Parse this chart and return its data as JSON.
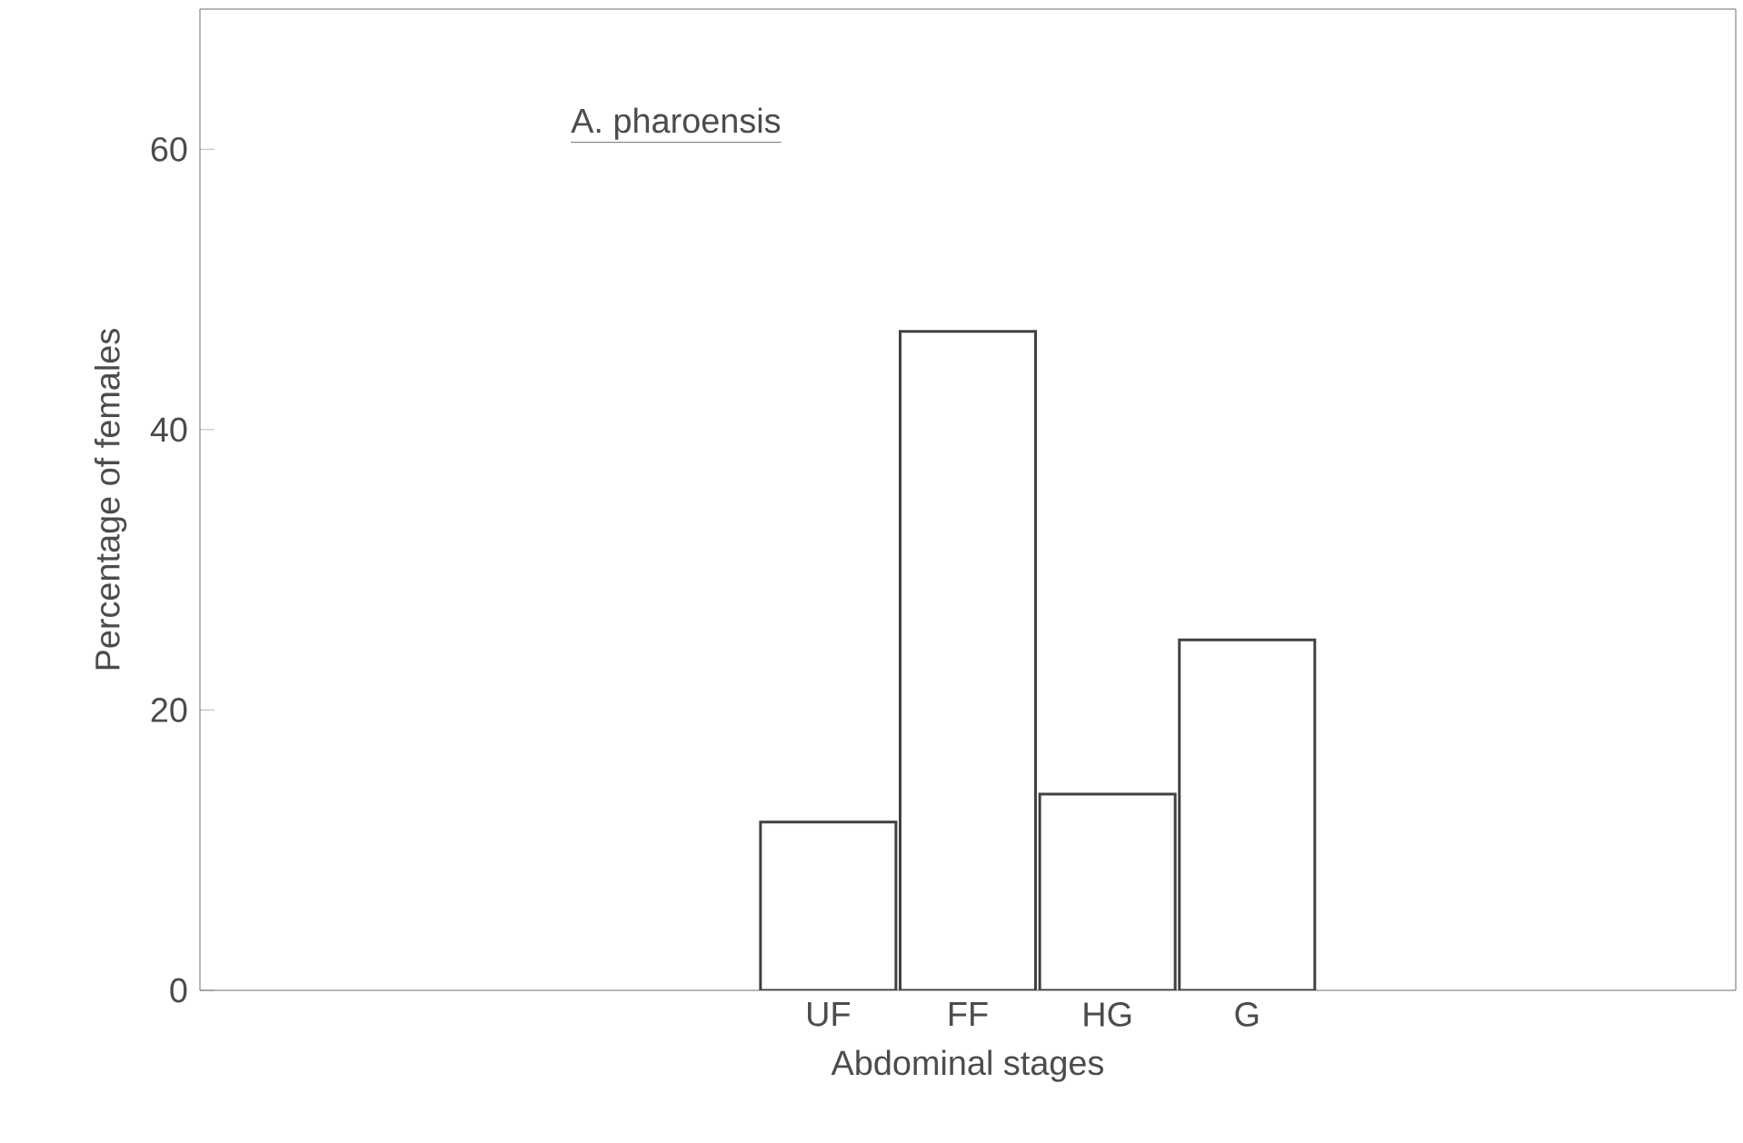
{
  "chart_data": {
    "type": "bar",
    "title": "A. pharoensis",
    "xlabel": "Abdominal stages",
    "ylabel": "Percentage of females",
    "categories": [
      null,
      null,
      null,
      null,
      "UF",
      "FF",
      "HG",
      "G",
      null,
      null,
      null
    ],
    "values": [
      null,
      null,
      null,
      null,
      12,
      47,
      14,
      25,
      null,
      null,
      null
    ],
    "color": "#ffffff",
    "ylim": [
      0,
      70
    ],
    "yticks": [
      0,
      20,
      40,
      60
    ]
  }
}
